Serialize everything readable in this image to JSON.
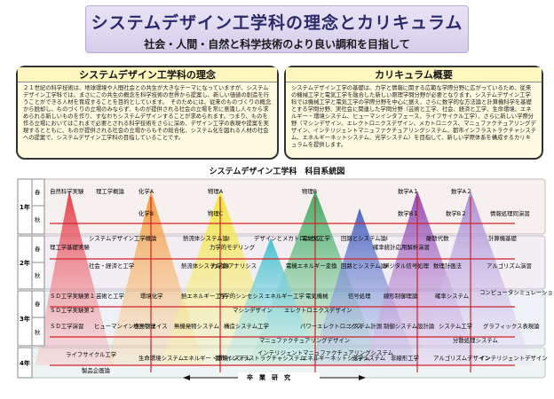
{
  "header": {
    "title": "システムデザイン工学科の理念とカリキュラム",
    "subtitle": "社会・人間・自然と科学技術のより良い調和を目指して"
  },
  "philosophy": {
    "title": "システムデザイン工学科の理念",
    "body": "２１世紀の科学技術は、地球環境や人間社会との共生が大きなテーマになっていますが、システムデザイン工学科では、まさにこの共生の概念を科学技術の世界から提案し、新しい価値の創造を行うことができる人材を育成することを目的としています。　そのためには、従来のものづくりの概念から脱却し、ものづくりの立場のみならず、ものが提供される社会の立場を常に意識し人々から求められる新しいものを作り、すなわちシステムデザインすることが求められます。つまり、ものを作る立場においてはこれまで必要とされる科学技術をさらに深め、デザイン工学の表現や提案を実現するとともに、ものが提供される社会の立場からもその総合化、システム化を図れる人材の社会への提案で、システムデザイン工学科の目指していることです。"
  },
  "curriculum": {
    "title": "カリキュラム概要",
    "body": "システムデザイン工学の基礎は、力学と情報に関する広範な学際分野に広がっているため、従来の機械工学と電気工学を融合した新しい原理学問分野が必要となります。システムデザイン工学科では機械工学と電気工学の学際分野を中心に据え、さらに数学的な方法論と計算機科学を基礎とする学問分野、実社会に関連した学問分野（芸術と工学、社会、経済と工学、生命環境、エネルギー・環境システム、ヒューマンインタフェース、ライフサイクル工学）、さらに新しい学際分野（マシンデザイン、エレクトロニクスデザイン、メカトロニクス、マニュファクチュアリングデザイン、インテリジェントマニュファクチュアリングシステム、都市インフラストラクチャシステム、エネルギーネットシステム、光学システム）を目指して、新しい学際体系を構成するカリキュラムを提供します。"
  },
  "chart": {
    "title": "システムデザイン工学科　科目系統図",
    "years": [
      {
        "label": "1年",
        "terms": [
          "春",
          "秋"
        ]
      },
      {
        "label": "2年",
        "terms": [
          "春",
          "秋"
        ]
      },
      {
        "label": "3年",
        "terms": [
          "春",
          "秋"
        ]
      },
      {
        "label": "4年",
        "terms": [
          ""
        ]
      }
    ],
    "graduation": "卒　業　研　究",
    "subjects": {
      "s1": "自然科学実験",
      "s2": "理工学概論",
      "s3": "化学A",
      "s4": "物理A",
      "s5": "物理B",
      "s6": "数学A１",
      "s7": "数学A２",
      "s8": "化学B",
      "s9": "物理C",
      "s10": "数学B１",
      "s11": "数学B２",
      "s12": "情報処理同演習",
      "s13": "理工学基礎実験",
      "s14": "システムデザイン工学概論",
      "s15": "熱流体システム論Ⅰ",
      "s16": "力学的モデリング",
      "s17": "デザインとメカトロニクス",
      "s18": "電磁気工学",
      "s19": "回路とシステム論Ⅰ",
      "s20": "確率統計応用解析演習",
      "s21": "離散代数",
      "s22": "計算機基礎",
      "s23": "社会・経済と工学",
      "s24": "熱流体システム論Ⅱ",
      "s25": "力学的アナリシス",
      "s26": "電機エネルギー変換",
      "s27": "回路とシステム論Ⅱ",
      "s28": "デジタル信号処理",
      "s29": "数理計画法",
      "s30": "アルゴリズム演習",
      "s31": "ＳＤ工学実験第１",
      "s32": "芸術と工学",
      "s33": "環境化学",
      "s34": "熱エネルギー工学",
      "s35": "力学的シンセシス",
      "s36": "エネルギー工学",
      "s37": "電気機械",
      "s38": "信号処理",
      "s39": "線形制御理論",
      "s40": "確率システム",
      "s41": "コンピュータシミュレーション",
      "s42": "ＳＤ工学実験第２",
      "s43": "マシンデザイン",
      "s44": "エレクトロニクスデザイン",
      "s45": "ＳＤ工学演習",
      "s46": "ヒューマンインターフェイス",
      "s47": "地圏物理",
      "s48": "無機発物システム",
      "s49": "構造システム工学",
      "s50": "パワーエレクトロニクス",
      "s51": "システム計測",
      "s52": "制御システム設計論",
      "s53": "システム工学",
      "s54": "グラフィックス表現論",
      "s55": "マニュファクチュアリングデザイン",
      "s56": "分散処理システム",
      "s57": "ライフサイクル工学",
      "s58": "生命環境システム",
      "s59": "エネルギー・環境システム",
      "s60": "都市インフラストラクチャシステム",
      "s61": "インテリジェントマニュファクチュアリングシステム",
      "s62": "エネルギーネットシステム",
      "s63": "光学システム",
      "s64": "非線形工学",
      "s65": "アルゴリズムデザイン",
      "s66": "インテリジェントデザイン",
      "s67": "製品企画論"
    }
  }
}
